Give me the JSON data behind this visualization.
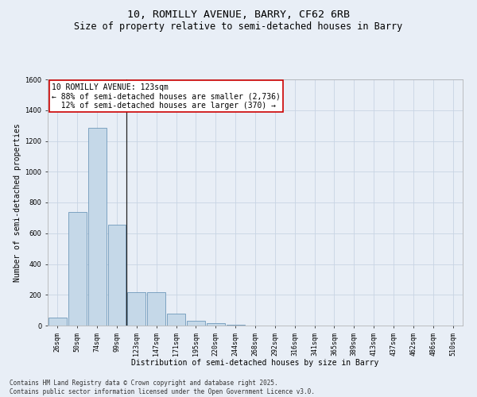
{
  "title": "10, ROMILLY AVENUE, BARRY, CF62 6RB",
  "subtitle": "Size of property relative to semi-detached houses in Barry",
  "xlabel": "Distribution of semi-detached houses by size in Barry",
  "ylabel": "Number of semi-detached properties",
  "categories": [
    "26sqm",
    "50sqm",
    "74sqm",
    "99sqm",
    "123sqm",
    "147sqm",
    "171sqm",
    "195sqm",
    "220sqm",
    "244sqm",
    "268sqm",
    "292sqm",
    "316sqm",
    "341sqm",
    "365sqm",
    "389sqm",
    "413sqm",
    "437sqm",
    "462sqm",
    "486sqm",
    "510sqm"
  ],
  "values": [
    50,
    740,
    1285,
    655,
    215,
    215,
    75,
    30,
    15,
    5,
    0,
    0,
    0,
    0,
    0,
    0,
    0,
    0,
    0,
    0,
    0
  ],
  "bar_color": "#c5d8e8",
  "bar_edge_color": "#5a8ab0",
  "vline_index": 4,
  "vline_color": "#222222",
  "annotation_text": "10 ROMILLY AVENUE: 123sqm\n← 88% of semi-detached houses are smaller (2,736)\n  12% of semi-detached houses are larger (370) →",
  "annotation_box_color": "white",
  "annotation_box_edge_color": "#cc0000",
  "ylim": [
    0,
    1600
  ],
  "yticks": [
    0,
    200,
    400,
    600,
    800,
    1000,
    1200,
    1400,
    1600
  ],
  "grid_color": "#c8d4e4",
  "background_color": "#e8eef6",
  "footer_text": "Contains HM Land Registry data © Crown copyright and database right 2025.\nContains public sector information licensed under the Open Government Licence v3.0.",
  "title_fontsize": 9.5,
  "subtitle_fontsize": 8.5,
  "axis_label_fontsize": 7,
  "tick_fontsize": 6,
  "annotation_fontsize": 7,
  "footer_fontsize": 5.5
}
